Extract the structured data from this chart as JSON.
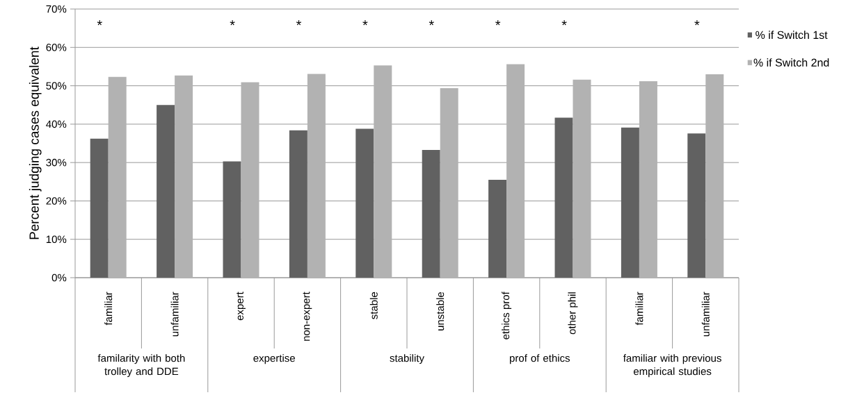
{
  "chart_data": {
    "type": "bar",
    "ylabel": "Percent judging cases equivalent",
    "categories": [
      "familiar",
      "unfamiliar",
      "expert",
      "non-expert",
      "stable",
      "unstable",
      "ethics prof",
      "other phil",
      "familiar",
      "unfamiliar"
    ],
    "series": [
      {
        "name": "% if Switch 1st",
        "color": "#616161",
        "values": [
          36.2,
          45.0,
          30.3,
          38.4,
          38.8,
          33.3,
          25.5,
          41.7,
          39.1,
          37.6
        ]
      },
      {
        "name": "% if Switch 2nd",
        "color": "#b2b2b2",
        "values": [
          52.3,
          52.7,
          50.9,
          53.1,
          55.3,
          49.4,
          55.6,
          51.6,
          51.2,
          53.0
        ]
      }
    ],
    "ylim": [
      0,
      70
    ],
    "yticks": [
      {
        "value": 0,
        "label": "0%"
      },
      {
        "value": 10,
        "label": "10%"
      },
      {
        "value": 20,
        "label": "20%"
      },
      {
        "value": 30,
        "label": "30%"
      },
      {
        "value": 40,
        "label": "40%"
      },
      {
        "value": 50,
        "label": "50%"
      },
      {
        "value": 60,
        "label": "60%"
      },
      {
        "value": 70,
        "label": "70%"
      }
    ],
    "grid": "y",
    "legend": "right",
    "annotations": [
      "familarity with both trolley and DDE",
      "expertise",
      "stability",
      "prof of ethics",
      "familiar with previous empirical studies",
      "*",
      "*",
      "*",
      "*",
      "*",
      "*",
      "*",
      "*"
    ]
  }
}
